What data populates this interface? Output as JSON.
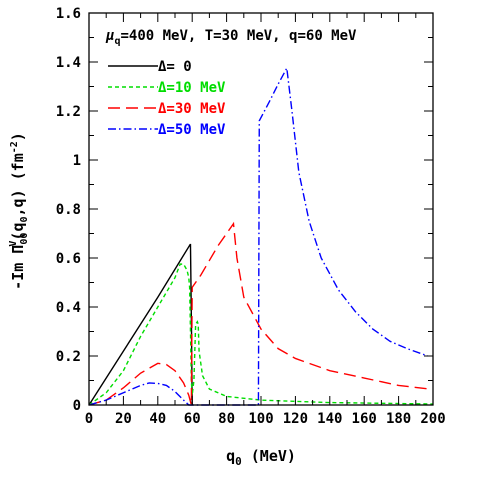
{
  "chart_data": {
    "type": "line",
    "title": "",
    "annotation_parts": [
      "μ",
      "q",
      "=400 MeV, T=30 MeV, q=60 MeV"
    ],
    "xlabel_parts": [
      "q",
      "0",
      "  (MeV)"
    ],
    "ylabel_parts": [
      "-Im Π",
      "00",
      "V",
      "(q",
      "0",
      ",q)  (fm",
      "-2",
      ")"
    ],
    "xlim": [
      0,
      200
    ],
    "ylim": [
      0,
      1.6
    ],
    "xticks": [
      "0",
      "20",
      "40",
      "60",
      "80",
      "100",
      "120",
      "140",
      "160",
      "180",
      "200"
    ],
    "yticks": [
      "0",
      "0.2",
      "0.4",
      "0.6",
      "0.8",
      "1",
      "1.2",
      "1.4",
      "1.6"
    ],
    "grid": false,
    "legend_position": "top-left",
    "series": [
      {
        "name": "Δ=  0",
        "color": "#000000",
        "dash": "solid",
        "points": [
          [
            0,
            0
          ],
          [
            20,
            0.22
          ],
          [
            40,
            0.44
          ],
          [
            58.8,
            0.655
          ],
          [
            59,
            0.655
          ],
          [
            59.3,
            0.48
          ],
          [
            59.6,
            0.3
          ],
          [
            60,
            0
          ]
        ]
      },
      {
        "name": "Δ=10 MeV",
        "color": "#00dd00",
        "dash": "short",
        "points": [
          [
            0,
            0
          ],
          [
            10,
            0.05
          ],
          [
            20,
            0.14
          ],
          [
            30,
            0.28
          ],
          [
            40,
            0.4
          ],
          [
            50,
            0.52
          ],
          [
            53,
            0.575
          ],
          [
            55,
            0.575
          ],
          [
            57,
            0.55
          ],
          [
            58,
            0.52
          ],
          [
            58.5,
            0.48
          ],
          [
            59,
            0.3
          ],
          [
            59.5,
            0.1
          ],
          [
            60,
            0.04
          ],
          [
            61,
            0.1
          ],
          [
            62,
            0.33
          ],
          [
            63,
            0.34
          ],
          [
            63.5,
            0.33
          ],
          [
            64,
            0.22
          ],
          [
            66,
            0.12
          ],
          [
            70,
            0.065
          ],
          [
            80,
            0.035
          ],
          [
            100,
            0.02
          ],
          [
            140,
            0.01
          ],
          [
            200,
            0.004
          ]
        ]
      },
      {
        "name": "Δ=30 MeV",
        "color": "#ff0000",
        "dash": "long",
        "points": [
          [
            0,
            0
          ],
          [
            10,
            0.02
          ],
          [
            20,
            0.07
          ],
          [
            30,
            0.13
          ],
          [
            40,
            0.17
          ],
          [
            45,
            0.165
          ],
          [
            50,
            0.14
          ],
          [
            55,
            0.09
          ],
          [
            58,
            0.04
          ],
          [
            59.5,
            0
          ],
          [
            60,
            0.48
          ],
          [
            65,
            0.53
          ],
          [
            70,
            0.59
          ],
          [
            75,
            0.65
          ],
          [
            80,
            0.7
          ],
          [
            84,
            0.74
          ],
          [
            86,
            0.6
          ],
          [
            90,
            0.44
          ],
          [
            100,
            0.31
          ],
          [
            110,
            0.23
          ],
          [
            120,
            0.19
          ],
          [
            140,
            0.14
          ],
          [
            160,
            0.11
          ],
          [
            180,
            0.08
          ],
          [
            198,
            0.065
          ]
        ]
      },
      {
        "name": "Δ=50 MeV",
        "color": "#0000ff",
        "dash": "dashdot",
        "points": [
          [
            0,
            0
          ],
          [
            10,
            0.02
          ],
          [
            20,
            0.05
          ],
          [
            30,
            0.08
          ],
          [
            35,
            0.09
          ],
          [
            40,
            0.088
          ],
          [
            45,
            0.08
          ],
          [
            50,
            0.055
          ],
          [
            55,
            0.02
          ],
          [
            58,
            0
          ],
          [
            98.5,
            0
          ],
          [
            99,
            1.16
          ],
          [
            105,
            1.24
          ],
          [
            110,
            1.31
          ],
          [
            115,
            1.375
          ],
          [
            118,
            1.2
          ],
          [
            122,
            0.95
          ],
          [
            128,
            0.75
          ],
          [
            135,
            0.6
          ],
          [
            145,
            0.47
          ],
          [
            155,
            0.38
          ],
          [
            165,
            0.31
          ],
          [
            175,
            0.26
          ],
          [
            185,
            0.23
          ],
          [
            197,
            0.2
          ]
        ]
      }
    ]
  }
}
